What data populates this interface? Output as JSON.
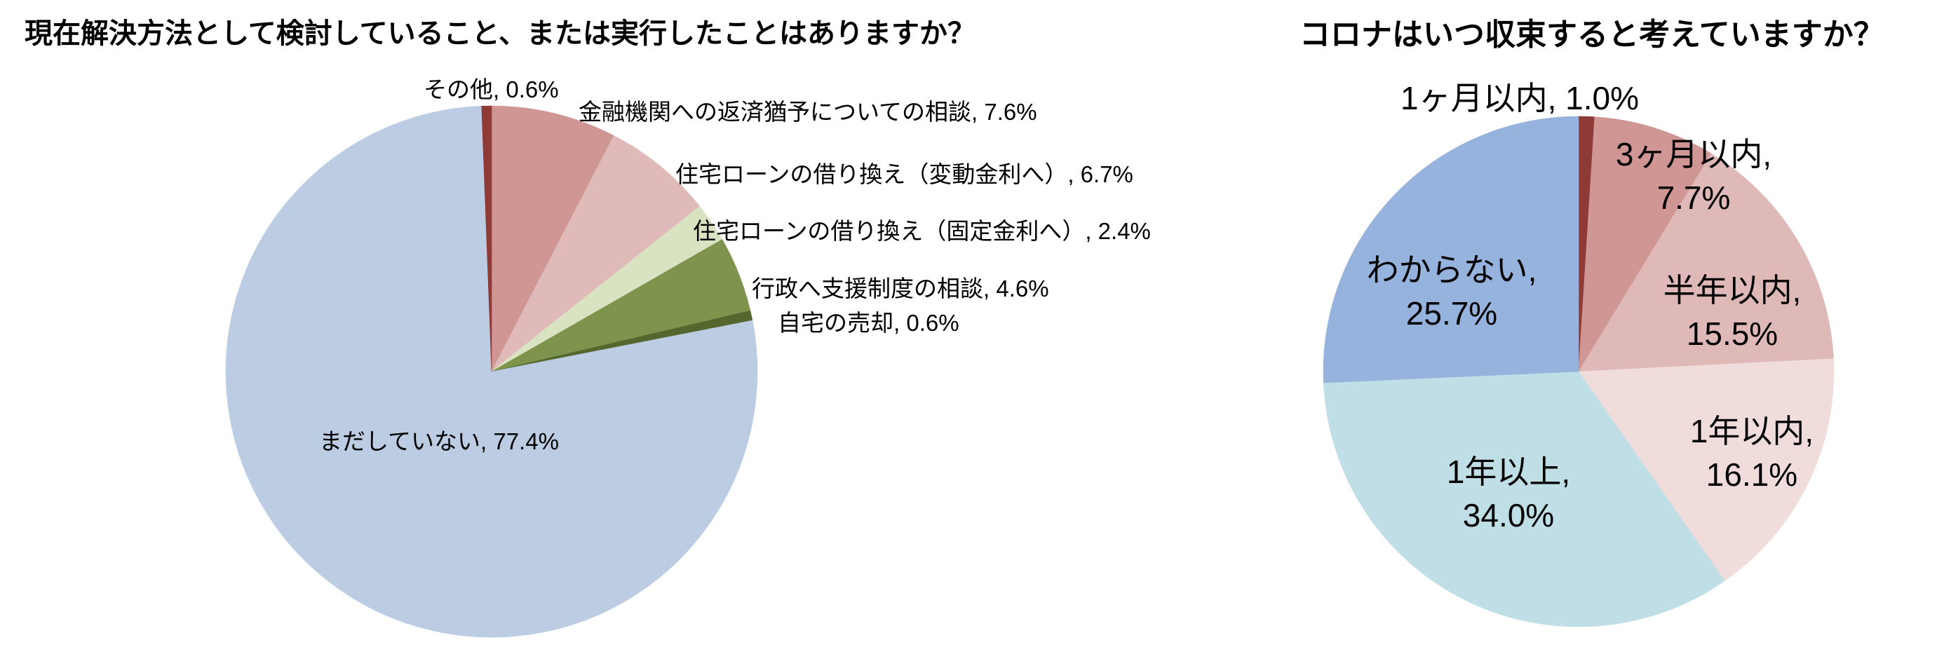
{
  "chart_data": [
    {
      "type": "pie",
      "title": "現在解決方法として検討していること、または実行したことはありますか？",
      "start_angle_deg": 0,
      "direction": "clockwise",
      "legend": "none",
      "data_labels": "category name, percentage",
      "slices": [
        {
          "label": "金融機関への返済猶予についての相談",
          "value": 7.6,
          "value_text": "7.6%",
          "color": "#CF9694",
          "data_label": [
            "金融機関への返済猶予についての相談, 7.6%"
          ]
        },
        {
          "label": "住宅ローンの借り換え（変動金利へ）",
          "value": 6.7,
          "value_text": "6.7%",
          "color": "#DFBAB9",
          "data_label": [
            "住宅ローンの借り換え（変動金利へ）, 6.7%"
          ]
        },
        {
          "label": "住宅ローンの借り換え（固定金利へ）",
          "value": 2.4,
          "value_text": "2.4%",
          "color": "#D9E3C2",
          "data_label": [
            "住宅ローンの借り換え（固定金利へ）, 2.4%"
          ]
        },
        {
          "label": "行政へ支援制度の相談",
          "value": 4.6,
          "value_text": "4.6%",
          "color": "#7E934B",
          "data_label": [
            "行政へ支援制度の相談, 4.6%"
          ]
        },
        {
          "label": "自宅の売却",
          "value": 0.6,
          "value_text": "0.6%",
          "color": "#55672F",
          "data_label": [
            "自宅の売却, 0.6%"
          ]
        },
        {
          "label": "まだしていない",
          "value": 77.4,
          "value_text": "77.4%",
          "color": "#BBCCE3",
          "data_label": [
            "まだしていない, 77.4%"
          ]
        },
        {
          "label": "その他",
          "value": 0.6,
          "value_text": "0.6%",
          "color": "#8E3B38",
          "data_label": [
            "その他, 0.6%"
          ]
        }
      ]
    },
    {
      "type": "pie",
      "title": "コロナはいつ収束すると考えていますか？",
      "start_angle_deg": 0,
      "direction": "clockwise",
      "legend": "none",
      "data_labels": "category name, percentage",
      "slices": [
        {
          "label": "1ヶ月以内",
          "value": 1.0,
          "value_text": "1.0%",
          "color": "#8E3B38",
          "data_label": [
            "1ヶ月以内, 1.0%"
          ]
        },
        {
          "label": "3ヶ月以内",
          "value": 7.7,
          "value_text": "7.7%",
          "color": "#D09694",
          "data_label": [
            "3ヶ月以内,",
            "7.7%"
          ]
        },
        {
          "label": "半年以内",
          "value": 15.5,
          "value_text": "15.5%",
          "color": "#DFB9B7",
          "data_label": [
            "半年以内,",
            "15.5%"
          ]
        },
        {
          "label": "1年以内",
          "value": 16.1,
          "value_text": "16.1%",
          "color": "#F0DCDB",
          "data_label": [
            "1年以内,",
            "16.1%"
          ]
        },
        {
          "label": "1年以上",
          "value": 34.0,
          "value_text": "34.0%",
          "color": "#BFDEE6",
          "data_label": [
            "1年以上,",
            "34.0%"
          ]
        },
        {
          "label": "わからない",
          "value": 25.7,
          "value_text": "25.7%",
          "color": "#95B3DC",
          "data_label": [
            "わからない,",
            "25.7%"
          ]
        }
      ]
    }
  ]
}
